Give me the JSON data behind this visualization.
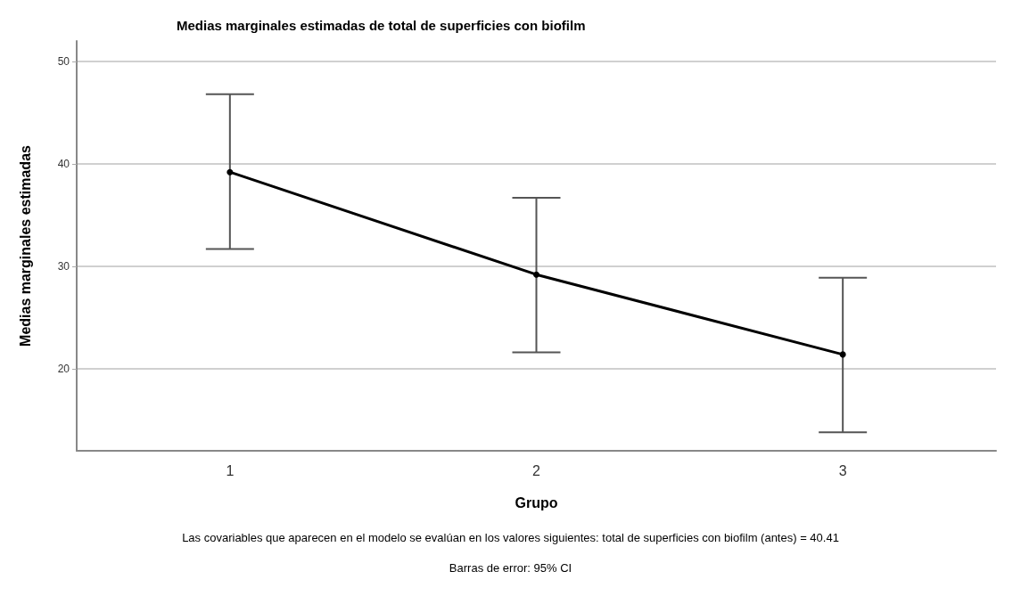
{
  "chart_data": {
    "type": "line",
    "title": "Medias marginales estimadas de total de superficies con biofilm",
    "xlabel": "Grupo",
    "ylabel": "Medias marginales estimadas",
    "categories": [
      "1",
      "2",
      "3"
    ],
    "series": [
      {
        "color": "#000000",
        "values": [
          39.2,
          29.2,
          21.4
        ],
        "errors": [
          [
            31.7,
            46.8
          ],
          [
            21.6,
            36.7
          ],
          [
            13.8,
            28.9
          ]
        ]
      }
    ],
    "ylim": [
      12,
      52
    ],
    "yticks": [
      20,
      30,
      40,
      50
    ],
    "grid": "y",
    "marker": "circle",
    "line_style": "solid",
    "annotations": [
      "Las covariables que aparecen en el modelo se evalúan en los valores siguientes: total de superficies con biofilm (antes) = 40.41",
      "Barras de error: 95% CI"
    ]
  }
}
